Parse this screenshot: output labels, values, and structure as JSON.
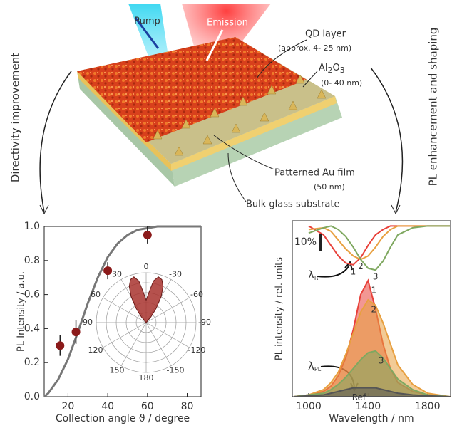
{
  "illustration": {
    "pump": "Pump",
    "emission": "Emission",
    "qd_layer": "QD layer",
    "qd_thickness": "(approx. 4- 25 nm)",
    "al2o3": {
      "al": "Al",
      "two": "2",
      "o": "O",
      "three": "3"
    },
    "al2o3_thickness": "(0- 40 nm)",
    "au_film": "Patterned Au film",
    "au_thickness": "(50 nm)",
    "substrate": "Bulk glass substrate",
    "left_arrow": "Directivity improvement",
    "right_arrow": "PL enhancement and shaping"
  },
  "chart_data": [
    {
      "type": "scatter",
      "xlabel": "Collection angle ϑ / degree",
      "ylabel": "PL Intensity / a.u.",
      "x": [
        16,
        24,
        40,
        60
      ],
      "values": [
        0.3,
        0.38,
        0.74,
        0.95
      ],
      "errors": [
        0.06,
        0.07,
        0.05,
        0.05
      ],
      "color": "#8b1a1a",
      "fit": {
        "x": [
          8,
          10,
          15,
          20,
          25,
          30,
          35,
          40,
          45,
          50,
          55,
          60,
          65,
          70,
          75,
          80,
          87
        ],
        "values": [
          0,
          0.02,
          0.1,
          0.22,
          0.38,
          0.55,
          0.7,
          0.82,
          0.9,
          0.95,
          0.98,
          0.99,
          1,
          1,
          1,
          1,
          1
        ],
        "color": "#777777"
      },
      "xlim": [
        8,
        87
      ],
      "xticks": [
        20,
        40,
        60,
        80
      ],
      "ylim": [
        0,
        1
      ],
      "yticks": [
        {
          "value": 0,
          "label": "0.0"
        },
        0.2,
        0.4,
        0.6,
        0.8,
        {
          "value": 1,
          "label": "1.0"
        }
      ]
    },
    {
      "type": "polar",
      "theta": [
        -45,
        -40,
        -35,
        -30,
        -25,
        -20,
        -15,
        -10,
        -5,
        0,
        5,
        10,
        15,
        20,
        25,
        30,
        35,
        40,
        45
      ],
      "r": [
        0,
        0.15,
        0.35,
        0.6,
        0.8,
        0.92,
        0.95,
        0.85,
        0.6,
        0.45,
        0.6,
        0.85,
        0.95,
        0.92,
        0.8,
        0.6,
        0.35,
        0.15,
        0
      ],
      "color": "#a8322e",
      "rlim": [
        0,
        1
      ],
      "rticks": [
        0.2,
        0.4,
        0.6,
        0.8,
        1
      ],
      "thetaticks": [
        0,
        30,
        60,
        90,
        120,
        150,
        180,
        -150,
        -120,
        -90,
        -60,
        -30
      ]
    },
    {
      "type": "line",
      "xlabel": "Wavelength / nm",
      "ylabel": "PL intensity / rel. units",
      "x": [
        900,
        1000,
        1100,
        1150,
        1200,
        1250,
        1300,
        1350,
        1400,
        1450,
        1500,
        1550,
        1600,
        1700,
        1800,
        1950
      ],
      "series": [
        {
          "name": "1",
          "color": "#e8413a",
          "fill": true,
          "values": [
            0,
            1,
            3,
            6,
            12,
            22,
            38,
            58,
            66,
            50,
            30,
            16,
            8,
            3,
            1,
            0
          ]
        },
        {
          "name": "2",
          "color": "#e8a040",
          "fill": true,
          "values": [
            0,
            1,
            4,
            8,
            14,
            24,
            36,
            48,
            55,
            52,
            42,
            30,
            18,
            7,
            2,
            0
          ]
        },
        {
          "name": "3",
          "color": "#7fa860",
          "fill": true,
          "values": [
            0,
            1,
            2,
            4,
            7,
            11,
            16,
            21,
            25,
            26,
            22,
            16,
            10,
            4,
            1,
            0
          ]
        },
        {
          "name": "Ref",
          "color": "#555555",
          "fill": true,
          "values": [
            0,
            0.5,
            1,
            2,
            3,
            4,
            5,
            5,
            5,
            5,
            4,
            3,
            2,
            1,
            0.5,
            0
          ]
        },
        {
          "name": "1",
          "color": "#e8413a",
          "fill": false,
          "values": [
            null,
            97,
            92,
            86,
            80,
            76,
            75,
            79,
            86,
            92,
            95,
            97,
            97,
            97,
            97,
            97
          ]
        },
        {
          "name": "2",
          "color": "#e8a040",
          "fill": false,
          "values": [
            null,
            95,
            96,
            94,
            89,
            84,
            80,
            78,
            80,
            85,
            91,
            95,
            97,
            97,
            97,
            97
          ]
        },
        {
          "name": "3",
          "color": "#7fa860",
          "fill": false,
          "values": [
            null,
            93,
            96,
            97,
            95,
            91,
            85,
            78,
            73,
            72,
            77,
            85,
            92,
            96,
            97,
            97
          ]
        }
      ],
      "scale_bar": {
        "value": 10,
        "label": "10%"
      },
      "lambda_r": {
        "main": "λ",
        "sub": "R"
      },
      "lambda_pl": {
        "main": "λ",
        "sub": "PL"
      },
      "xlim": [
        890,
        1955
      ],
      "xticks": [
        1000,
        1400,
        1800
      ],
      "ylim": [
        0,
        100
      ]
    }
  ]
}
